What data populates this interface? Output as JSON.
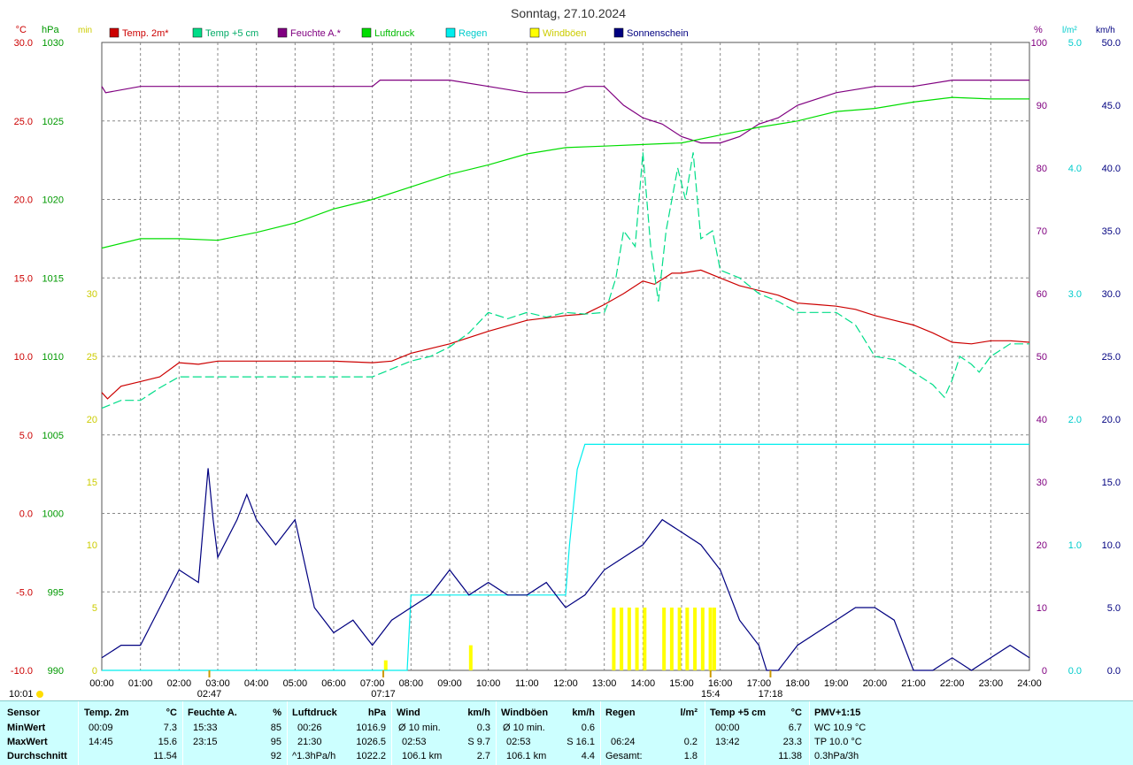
{
  "title": "Sonntag, 27.10.2024",
  "colors": {
    "temp": "#cc0000",
    "temp5": "#00dd88",
    "humidity": "#800080",
    "pressure": "#00dd00",
    "rain": "#00eeee",
    "sun": "#ffff00",
    "gust": "#000080",
    "grid": "#888888"
  },
  "axes": {
    "temp": {
      "unit": "°C",
      "min": -10,
      "max": 30,
      "step": 5,
      "labels": [
        "-10.0",
        "-5.0",
        "0.0",
        "5.0",
        "10.0",
        "15.0",
        "20.0",
        "25.0",
        "30.0"
      ]
    },
    "pressure": {
      "unit": "hPa",
      "min": 990,
      "max": 1030,
      "labels": [
        "990",
        "995",
        "1000",
        "1005",
        "1010",
        "1015",
        "1020",
        "1025",
        "1030"
      ]
    },
    "sun_min": {
      "unit": "min",
      "labels": [
        "0",
        "5",
        "10",
        "15",
        "20",
        "25",
        "30"
      ]
    },
    "humidity": {
      "unit": "%",
      "labels": [
        "0",
        "10",
        "20",
        "30",
        "40",
        "50",
        "60",
        "70",
        "80",
        "90",
        "100"
      ]
    },
    "rain": {
      "unit": "l/m²",
      "labels": [
        "0.0",
        "1.0",
        "2.0",
        "3.0",
        "4.0",
        "5.0"
      ]
    },
    "wind": {
      "unit": "km/h",
      "labels": [
        "0.0",
        "5.0",
        "10.0",
        "15.0",
        "20.0",
        "25.0",
        "30.0",
        "35.0",
        "40.0",
        "45.0",
        "50.0"
      ]
    },
    "time": {
      "labels": [
        "00:00",
        "01:00",
        "02:00",
        "03:00",
        "04:00",
        "05:00",
        "06:00",
        "07:00",
        "08:00",
        "09:00",
        "10:00",
        "11:00",
        "12:00",
        "13:00",
        "14:00",
        "15:00",
        "16:00",
        "17:00",
        "18:00",
        "19:00",
        "20:00",
        "21:00",
        "22:00",
        "23:00",
        "24:00"
      ]
    }
  },
  "markers": {
    "sunrise": "07:17",
    "sunset": "17:18",
    "moonrise": "02:47",
    "moonset": "15:4",
    "moonphase_time": "10:01",
    "sunrise_h": 7.283,
    "sunset_h": 17.3,
    "moonrise_h": 2.783,
    "moonset_h": 15.75
  },
  "chart_data": {
    "type": "line",
    "title": "Sonntag, 27.10.2024",
    "x_unit": "hour",
    "series": [
      {
        "name": "Temp. 2m*",
        "unit": "°C",
        "axis": "temp",
        "x": [
          0,
          0.15,
          0.5,
          1,
          1.5,
          2,
          2.5,
          3,
          4,
          5,
          6,
          7,
          7.5,
          8,
          9,
          10,
          11,
          12,
          12.5,
          13,
          13.5,
          14,
          14.3,
          14.75,
          15,
          15.5,
          16,
          16.5,
          17,
          17.5,
          18,
          18.5,
          19,
          19.5,
          20,
          20.5,
          21,
          21.5,
          22,
          22.5,
          23,
          23.5,
          24
        ],
        "values": [
          7.7,
          7.3,
          8.1,
          8.4,
          8.7,
          9.6,
          9.5,
          9.7,
          9.7,
          9.7,
          9.7,
          9.6,
          9.7,
          10.2,
          10.8,
          11.6,
          12.3,
          12.6,
          12.7,
          13.3,
          14.0,
          14.8,
          14.6,
          15.3,
          15.3,
          15.5,
          15.0,
          14.5,
          14.2,
          13.9,
          13.4,
          13.3,
          13.2,
          13.0,
          12.6,
          12.3,
          12.0,
          11.5,
          10.9,
          10.8,
          11.0,
          11.0,
          10.9
        ]
      },
      {
        "name": "Temp +5 cm",
        "unit": "°C",
        "axis": "temp",
        "x": [
          0,
          0.5,
          1,
          1.5,
          2,
          2.5,
          3,
          4,
          5,
          6,
          7,
          7.3,
          7.5,
          8,
          8.5,
          9,
          9.5,
          10,
          10.5,
          11,
          11.5,
          12,
          12.5,
          13,
          13.1,
          13.3,
          13.5,
          13.8,
          14.0,
          14.2,
          14.4,
          14.6,
          14.9,
          15.1,
          15.3,
          15.5,
          15.8,
          16.0,
          16.5,
          17,
          17.5,
          18,
          18.5,
          19,
          19.5,
          20,
          20.5,
          21,
          21.5,
          21.8,
          22,
          22.2,
          22.5,
          22.7,
          23,
          23.5,
          24
        ],
        "values": [
          6.7,
          7.2,
          7.2,
          8.0,
          8.7,
          8.7,
          8.7,
          8.7,
          8.7,
          8.7,
          8.7,
          9.0,
          9.2,
          9.7,
          10.0,
          10.6,
          11.5,
          12.8,
          12.4,
          12.8,
          12.5,
          12.8,
          12.7,
          12.8,
          13.4,
          15.0,
          18.0,
          17.0,
          23.0,
          17.0,
          13.5,
          18.0,
          22.0,
          20.0,
          23.0,
          17.5,
          18.0,
          15.5,
          15.0,
          14.0,
          13.5,
          12.8,
          12.8,
          12.8,
          12.0,
          10.0,
          9.8,
          9.0,
          8.2,
          7.4,
          8.5,
          10.0,
          9.5,
          9.0,
          10.0,
          10.8,
          10.8
        ]
      },
      {
        "name": "Feuchte A.*",
        "unit": "%",
        "axis": "humidity",
        "x": [
          0,
          0.1,
          1,
          3,
          6,
          7,
          7.2,
          8,
          9,
          10,
          11,
          12,
          12.5,
          13,
          13.5,
          14,
          14.5,
          15,
          15.5,
          16,
          16.5,
          17,
          17.5,
          18,
          18.5,
          19,
          20,
          21,
          22,
          23,
          24
        ],
        "values": [
          93,
          92,
          93,
          93,
          93,
          93,
          94,
          94,
          94,
          93,
          92,
          92,
          93,
          93,
          90,
          88,
          87,
          85,
          84,
          84,
          85,
          87,
          88,
          90,
          91,
          92,
          93,
          93,
          94,
          94,
          94
        ]
      },
      {
        "name": "Luftdruck",
        "unit": "hPa",
        "axis": "pressure",
        "x": [
          0,
          1,
          2,
          3,
          4,
          5,
          6,
          7,
          8,
          9,
          10,
          11,
          12,
          13,
          14,
          15,
          16,
          17,
          18,
          19,
          20,
          21,
          22,
          23,
          24
        ],
        "values": [
          1016.9,
          1017.5,
          1017.5,
          1017.4,
          1017.9,
          1018.5,
          1019.4,
          1020.0,
          1020.8,
          1021.6,
          1022.2,
          1022.9,
          1023.3,
          1023.4,
          1023.5,
          1023.6,
          1024.1,
          1024.6,
          1025.0,
          1025.6,
          1025.8,
          1026.2,
          1026.5,
          1026.4,
          1026.4
        ]
      },
      {
        "name": "Regen",
        "unit": "l/m²",
        "axis": "rain",
        "x": [
          0,
          6.4,
          7.9,
          8.0,
          12.0,
          12.1,
          12.3,
          12.5,
          12.6,
          24
        ],
        "values": [
          0,
          0.0,
          0.0,
          0.6,
          0.6,
          1.0,
          1.6,
          1.8,
          1.8,
          1.8
        ]
      },
      {
        "name": "Windböen",
        "unit": "km/h",
        "axis": "wind",
        "x": [
          0,
          0.5,
          1,
          1.5,
          2,
          2.5,
          2.75,
          2.88,
          3,
          3.5,
          3.75,
          4,
          4.5,
          5,
          5.5,
          6,
          6.5,
          7,
          7.5,
          8,
          8.5,
          9,
          9.5,
          10,
          10.5,
          11,
          11.5,
          12,
          12.5,
          13,
          13.5,
          14,
          14.5,
          15,
          15.5,
          16,
          16.5,
          17,
          17.2,
          17.5,
          18,
          18.5,
          19,
          19.5,
          20,
          20.5,
          21,
          21.5,
          22,
          22.5,
          23,
          23.5,
          24
        ],
        "values": [
          1,
          2,
          2,
          5,
          8,
          7,
          16.1,
          12,
          9,
          12,
          14,
          12,
          10,
          12,
          5,
          3,
          4,
          2,
          4,
          5,
          6,
          8,
          6,
          7,
          6,
          6,
          7,
          5,
          6,
          8,
          9,
          10,
          12,
          11,
          10,
          8,
          4,
          2,
          0,
          0,
          2,
          3,
          4,
          5,
          5,
          4,
          0,
          0,
          1,
          0,
          1,
          2,
          1
        ]
      },
      {
        "name": "Sonnenschein",
        "unit": "min",
        "axis": "sun_min",
        "x": [
          7.3,
          9.5,
          13.2,
          13.4,
          13.6,
          13.8,
          14.0,
          14.5,
          14.7,
          14.9,
          15.1,
          15.3,
          15.5,
          15.7,
          15.8
        ],
        "values": [
          0.8,
          2,
          5,
          5,
          5,
          5,
          5,
          5,
          5,
          5,
          5,
          5,
          5,
          5,
          5
        ]
      }
    ]
  },
  "stats": {
    "headers": {
      "sensor": "Sensor",
      "temp": {
        "name": "Temp. 2m",
        "unit": "°C"
      },
      "hum": {
        "name": "Feuchte A.",
        "unit": "%"
      },
      "press": {
        "name": "Luftdruck",
        "unit": "hPa"
      },
      "wind": {
        "name": "Wind",
        "unit": "km/h"
      },
      "gust": {
        "name": "Windböen",
        "unit": "km/h"
      },
      "rain": {
        "name": "Regen",
        "unit": "l/m²"
      },
      "temp5": {
        "name": "Temp +5 cm",
        "unit": "°C"
      },
      "pmv": "PMV+1:15"
    },
    "rows": {
      "min": {
        "label": "MinWert",
        "temp_t": "00:09",
        "temp_v": "7.3",
        "hum_t": "15:33",
        "hum_v": "85",
        "press_t": "00:26",
        "press_v": "1016.9",
        "wind_l": "Ø 10 min.",
        "wind_v": "0.3",
        "gust_l": "Ø 10 min.",
        "gust_v": "0.6",
        "rain_t": "",
        "rain_v": "",
        "temp5_t": "00:00",
        "temp5_v": "6.7",
        "pmv": "WC 10.9 °C"
      },
      "max": {
        "label": "MaxWert",
        "temp_t": "14:45",
        "temp_v": "15.6",
        "hum_t": "23:15",
        "hum_v": "95",
        "press_t": "21:30",
        "press_v": "1026.5",
        "wind_l": "02:53",
        "wind_v": "S 9.7",
        "gust_l": "02:53",
        "gust_v": "S 16.1",
        "rain_t": "06:24",
        "rain_v": "0.2",
        "temp5_t": "13:42",
        "temp5_v": "23.3",
        "pmv": "TP 10.0 °C"
      },
      "avg": {
        "label": "Durchschnitt",
        "temp_t": "",
        "temp_v": "11.54",
        "hum_t": "",
        "hum_v": "92",
        "press_t": "^1.3hPa/h",
        "press_v": "1022.2",
        "wind_l": "106.1 km",
        "wind_v": "2.7",
        "gust_l": "106.1 km",
        "gust_v": "4.4",
        "rain_t": "Gesamt:",
        "rain_v": "1.8",
        "temp5_t": "",
        "temp5_v": "11.38",
        "pmv": "0.3hPa/3h"
      }
    }
  }
}
